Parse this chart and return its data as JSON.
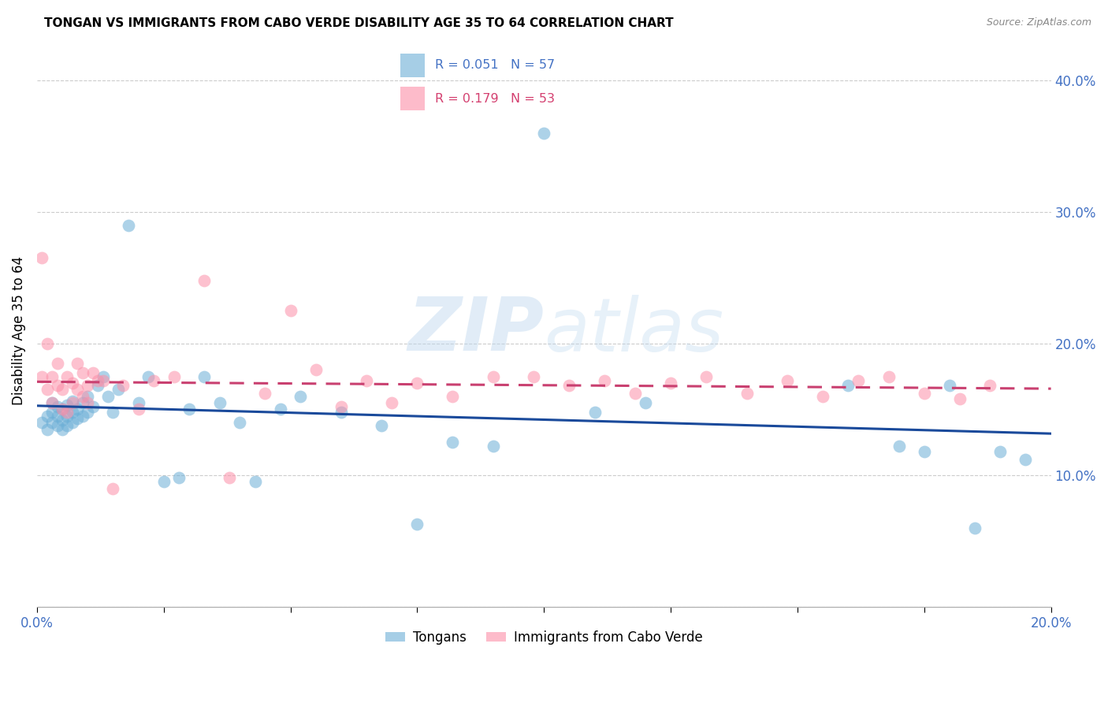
{
  "title": "TONGAN VS IMMIGRANTS FROM CABO VERDE DISABILITY AGE 35 TO 64 CORRELATION CHART",
  "source": "Source: ZipAtlas.com",
  "ylabel": "Disability Age 35 to 64",
  "xlim": [
    0.0,
    0.2
  ],
  "ylim": [
    0.0,
    0.42
  ],
  "xticks": [
    0.0,
    0.025,
    0.05,
    0.075,
    0.1,
    0.125,
    0.15,
    0.175,
    0.2
  ],
  "yticks": [
    0.0,
    0.1,
    0.2,
    0.3,
    0.4
  ],
  "blue_color": "#6BAED6",
  "pink_color": "#FC8FA8",
  "trendline_blue_color": "#1A4A9B",
  "trendline_pink_color": "#C94070",
  "grid_color": "#CCCCCC",
  "watermark_zip": "ZIP",
  "watermark_atlas": "atlas",
  "legend_R_blue": "R = 0.051",
  "legend_N_blue": "N = 57",
  "legend_R_pink": "R = 0.179",
  "legend_N_pink": "N = 53",
  "tick_color": "#4472C4",
  "blue_scatter_x": [
    0.001,
    0.002,
    0.002,
    0.003,
    0.003,
    0.003,
    0.004,
    0.004,
    0.004,
    0.005,
    0.005,
    0.005,
    0.006,
    0.006,
    0.006,
    0.007,
    0.007,
    0.007,
    0.008,
    0.008,
    0.009,
    0.009,
    0.01,
    0.01,
    0.011,
    0.012,
    0.013,
    0.014,
    0.015,
    0.016,
    0.018,
    0.02,
    0.022,
    0.025,
    0.028,
    0.03,
    0.033,
    0.036,
    0.04,
    0.043,
    0.048,
    0.052,
    0.06,
    0.068,
    0.075,
    0.082,
    0.09,
    0.1,
    0.11,
    0.12,
    0.16,
    0.17,
    0.175,
    0.18,
    0.185,
    0.19,
    0.195
  ],
  "blue_scatter_y": [
    0.14,
    0.145,
    0.135,
    0.14,
    0.148,
    0.155,
    0.138,
    0.145,
    0.152,
    0.135,
    0.142,
    0.15,
    0.138,
    0.145,
    0.153,
    0.14,
    0.148,
    0.156,
    0.143,
    0.15,
    0.145,
    0.155,
    0.148,
    0.16,
    0.152,
    0.168,
    0.175,
    0.16,
    0.148,
    0.165,
    0.29,
    0.155,
    0.175,
    0.095,
    0.098,
    0.15,
    0.175,
    0.155,
    0.14,
    0.095,
    0.15,
    0.16,
    0.148,
    0.138,
    0.063,
    0.125,
    0.122,
    0.36,
    0.148,
    0.155,
    0.168,
    0.122,
    0.118,
    0.168,
    0.06,
    0.118,
    0.112
  ],
  "pink_scatter_x": [
    0.001,
    0.001,
    0.002,
    0.002,
    0.003,
    0.003,
    0.004,
    0.004,
    0.005,
    0.005,
    0.006,
    0.006,
    0.007,
    0.007,
    0.008,
    0.008,
    0.009,
    0.009,
    0.01,
    0.01,
    0.011,
    0.012,
    0.013,
    0.015,
    0.017,
    0.02,
    0.023,
    0.027,
    0.033,
    0.038,
    0.045,
    0.05,
    0.055,
    0.06,
    0.065,
    0.07,
    0.075,
    0.082,
    0.09,
    0.098,
    0.105,
    0.112,
    0.118,
    0.125,
    0.132,
    0.14,
    0.148,
    0.155,
    0.162,
    0.168,
    0.175,
    0.182,
    0.188
  ],
  "pink_scatter_y": [
    0.265,
    0.175,
    0.2,
    0.165,
    0.175,
    0.155,
    0.168,
    0.185,
    0.15,
    0.165,
    0.148,
    0.175,
    0.155,
    0.17,
    0.165,
    0.185,
    0.16,
    0.178,
    0.155,
    0.168,
    0.178,
    0.172,
    0.172,
    0.09,
    0.168,
    0.15,
    0.172,
    0.175,
    0.248,
    0.098,
    0.162,
    0.225,
    0.18,
    0.152,
    0.172,
    0.155,
    0.17,
    0.16,
    0.175,
    0.175,
    0.168,
    0.172,
    0.162,
    0.17,
    0.175,
    0.162,
    0.172,
    0.16,
    0.172,
    0.175,
    0.162,
    0.158,
    0.168
  ]
}
